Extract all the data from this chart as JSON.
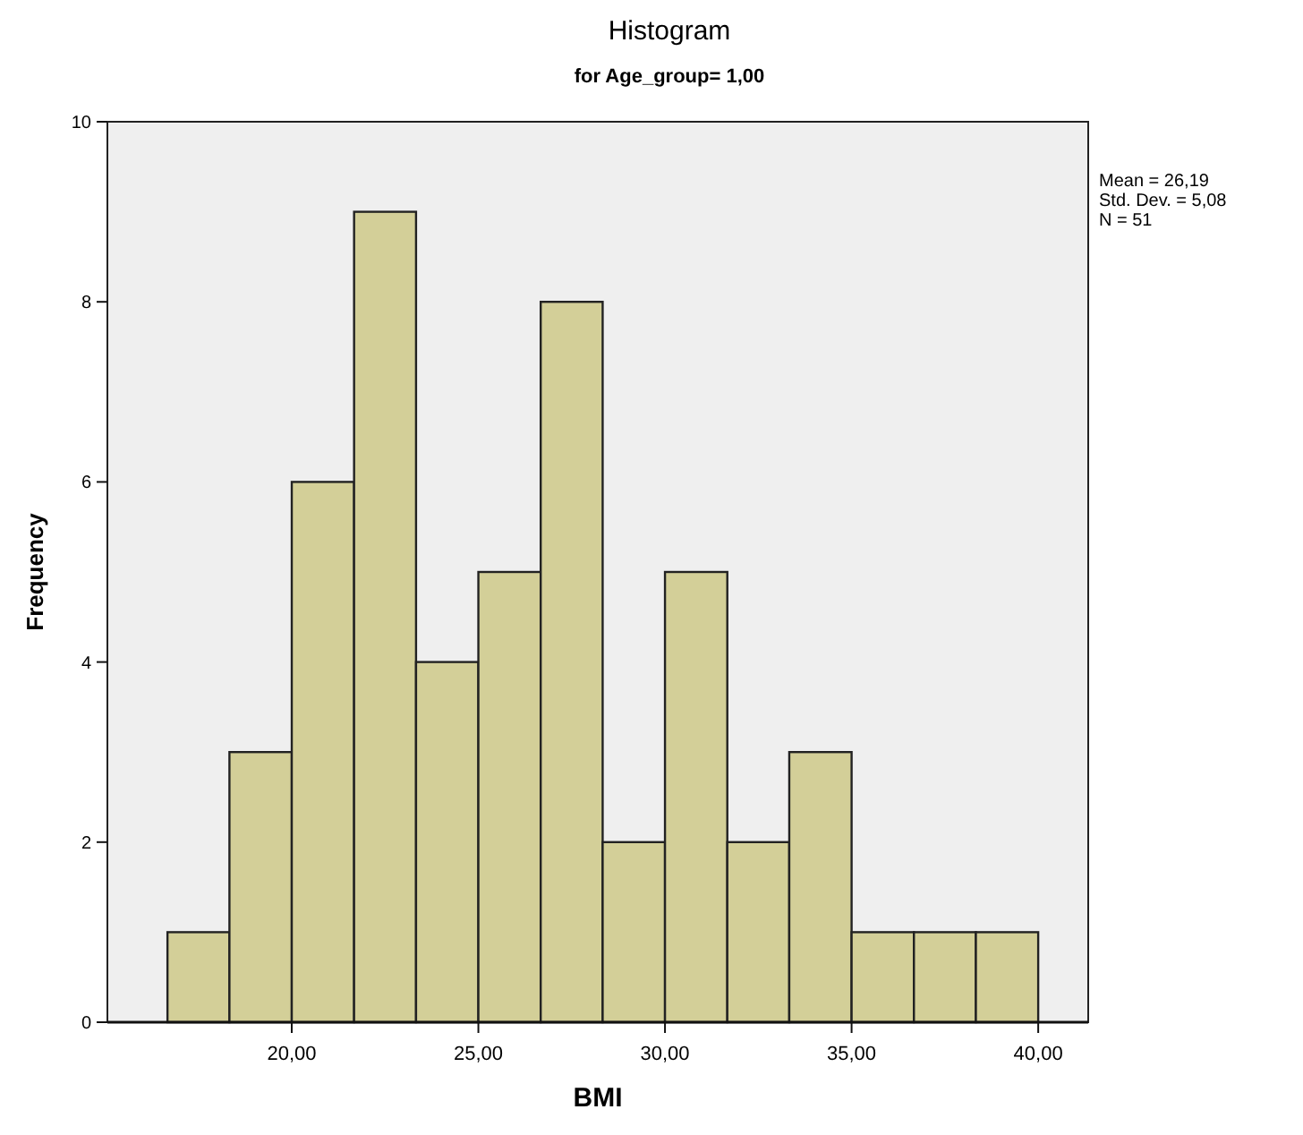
{
  "chart_data": {
    "type": "histogram",
    "title": "Histogram",
    "subtitle": "for Age_group= 1,00",
    "xlabel": "BMI",
    "ylabel": "Frequency",
    "bins": [
      16.67,
      18.33,
      20,
      21.67,
      23.33,
      25,
      26.67,
      28.33,
      30,
      31.67,
      33.33,
      35,
      36.67,
      38.33,
      40
    ],
    "values": [
      1,
      3,
      6,
      9,
      4,
      5,
      8,
      2,
      5,
      2,
      3,
      1,
      1,
      1
    ],
    "color": "#d3cf98",
    "xlim": [
      15.06,
      41.34
    ],
    "xticks": [
      {
        "value": 20,
        "label": "20,00"
      },
      {
        "value": 25,
        "label": "25,00"
      },
      {
        "value": 30,
        "label": "30,00"
      },
      {
        "value": 35,
        "label": "35,00"
      },
      {
        "value": 40,
        "label": "40,00"
      }
    ],
    "ylim": [
      0,
      10
    ],
    "yticks": [
      0,
      2,
      4,
      6,
      8,
      10
    ],
    "annotations": [
      "Mean = 26,19",
      "Std. Dev. = 5,08",
      "N = 51"
    ]
  }
}
